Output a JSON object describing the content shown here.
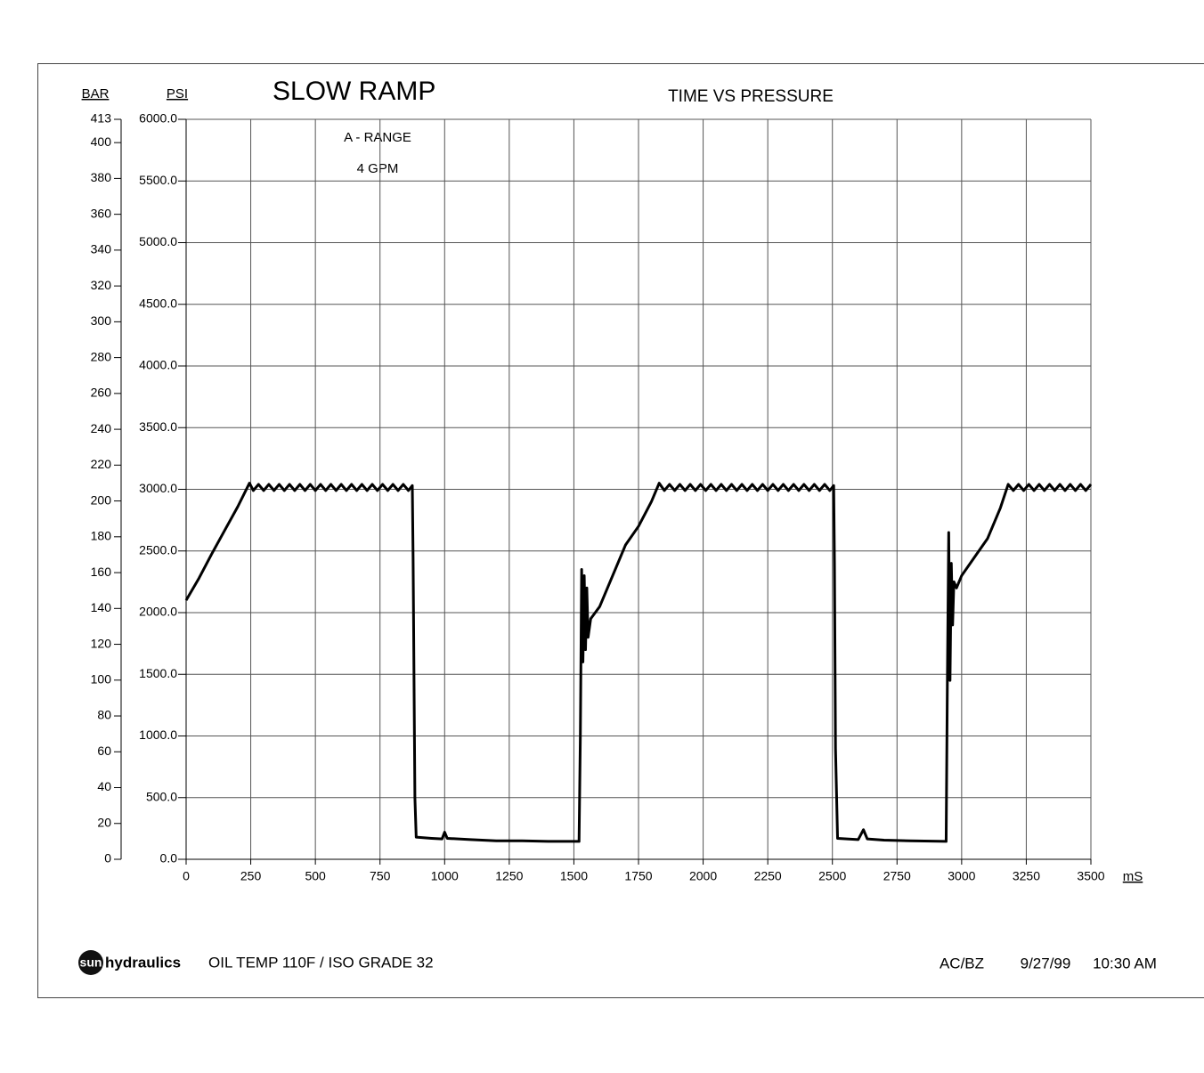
{
  "chart_data": {
    "type": "line",
    "title": "SLOW RAMP",
    "subtitle": "TIME VS PRESSURE",
    "y_label": "PSI",
    "y2_label": "BAR",
    "x_label": "mS",
    "annotations": [
      "A - RANGE",
      "4 GPM"
    ],
    "footer": {
      "logo": "sun",
      "brand": "hydraulics",
      "note": "OIL TEMP 110F / ISO GRADE 32",
      "initials": "AC/BZ",
      "date": "9/27/99",
      "time": "10:30 AM"
    },
    "grid": true,
    "xlim": [
      0,
      3500
    ],
    "xticks": [
      0,
      250,
      500,
      750,
      1000,
      1250,
      1500,
      1750,
      2000,
      2250,
      2500,
      2750,
      3000,
      3250,
      3500
    ],
    "ylim": [
      0,
      6000
    ],
    "yticks": [
      {
        "value": 0,
        "label": "0.0"
      },
      {
        "value": 500,
        "label": "500.0"
      },
      {
        "value": 1000,
        "label": "1000.0"
      },
      {
        "value": 1500,
        "label": "1500.0"
      },
      {
        "value": 2000,
        "label": "2000.0"
      },
      {
        "value": 2500,
        "label": "2500.0"
      },
      {
        "value": 3000,
        "label": "3000.0"
      },
      {
        "value": 3500,
        "label": "3500.0"
      },
      {
        "value": 4000,
        "label": "4000.0"
      },
      {
        "value": 4500,
        "label": "4500.0"
      },
      {
        "value": 5000,
        "label": "5000.0"
      },
      {
        "value": 5500,
        "label": "5500.0"
      },
      {
        "value": 6000,
        "label": "6000.0"
      }
    ],
    "y2lim": [
      0,
      413
    ],
    "y2ticks": [
      0,
      20,
      40,
      60,
      80,
      100,
      120,
      140,
      160,
      180,
      200,
      220,
      240,
      260,
      280,
      300,
      320,
      340,
      360,
      380,
      400,
      413
    ],
    "series": [
      {
        "name": "Pressure",
        "color": "#000000",
        "x": [
          0,
          50,
          100,
          150,
          200,
          245,
          260,
          280,
          300,
          320,
          340,
          360,
          380,
          400,
          420,
          440,
          460,
          480,
          500,
          520,
          540,
          560,
          580,
          600,
          620,
          640,
          660,
          680,
          700,
          720,
          740,
          760,
          780,
          800,
          820,
          840,
          860,
          875,
          878,
          885,
          890,
          950,
          990,
          1000,
          1010,
          1100,
          1200,
          1300,
          1400,
          1520,
          1525,
          1530,
          1535,
          1540,
          1545,
          1550,
          1555,
          1565,
          1600,
          1650,
          1700,
          1750,
          1800,
          1830,
          1850,
          1870,
          1890,
          1910,
          1930,
          1950,
          1970,
          1990,
          2010,
          2030,
          2050,
          2070,
          2090,
          2110,
          2130,
          2150,
          2170,
          2190,
          2210,
          2230,
          2250,
          2270,
          2290,
          2310,
          2330,
          2350,
          2370,
          2390,
          2410,
          2430,
          2450,
          2470,
          2490,
          2505,
          2508,
          2512,
          2520,
          2600,
          2620,
          2635,
          2700,
          2800,
          2940,
          2945,
          2950,
          2955,
          2960,
          2965,
          2970,
          2980,
          3000,
          3050,
          3100,
          3150,
          3180,
          3200,
          3220,
          3240,
          3260,
          3280,
          3300,
          3320,
          3340,
          3360,
          3380,
          3400,
          3420,
          3440,
          3460,
          3480,
          3500
        ],
        "values": [
          2100,
          2280,
          2480,
          2670,
          2860,
          3050,
          2990,
          3040,
          2990,
          3040,
          2990,
          3040,
          2990,
          3040,
          2990,
          3040,
          2990,
          3040,
          2990,
          3040,
          2990,
          3040,
          2990,
          3040,
          2990,
          3040,
          2990,
          3040,
          2990,
          3040,
          2990,
          3040,
          2990,
          3040,
          2990,
          3040,
          2990,
          3030,
          2450,
          500,
          180,
          170,
          165,
          220,
          170,
          160,
          150,
          150,
          145,
          145,
          1000,
          2350,
          1600,
          2300,
          1700,
          2200,
          1800,
          1950,
          2050,
          2300,
          2550,
          2700,
          2900,
          3050,
          2990,
          3040,
          2990,
          3040,
          2990,
          3040,
          2990,
          3040,
          2990,
          3040,
          2990,
          3040,
          2990,
          3040,
          2990,
          3040,
          2990,
          3040,
          2990,
          3040,
          2990,
          3040,
          2990,
          3040,
          2990,
          3040,
          2990,
          3040,
          2990,
          3040,
          2990,
          3040,
          2990,
          3030,
          2400,
          900,
          170,
          160,
          240,
          165,
          155,
          150,
          145,
          1500,
          2650,
          1450,
          2400,
          1900,
          2250,
          2200,
          2300,
          2450,
          2600,
          2850,
          3040,
          2990,
          3040,
          2990,
          3040,
          2990,
          3040,
          2990,
          3040,
          2990,
          3040,
          2990,
          3040,
          2990,
          3040,
          2990,
          3040
        ]
      }
    ]
  }
}
